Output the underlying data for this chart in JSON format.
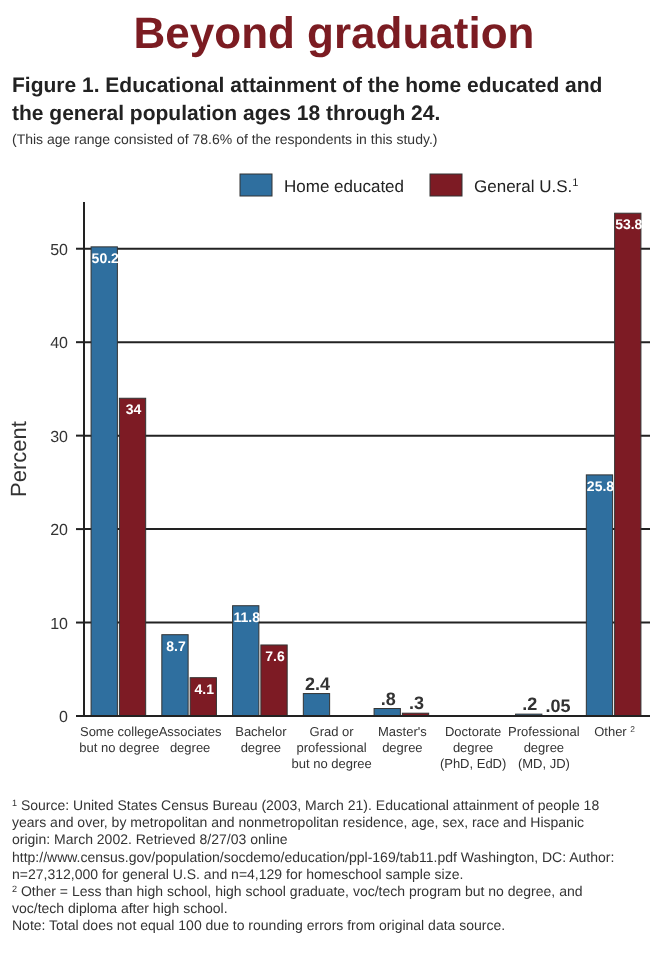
{
  "chart_data": {
    "type": "bar",
    "title": "Beyond graduation",
    "subtitle": "Figure 1. Educational attainment of the home educated and the general population ages 18 through 24.",
    "ylabel": "Percent",
    "categories": [
      "Some college\nbut no degree",
      "Associates\ndegree",
      "Bachelor\ndegree",
      "Grad or\nprofessional\nbut no degree",
      "Master's\ndegree",
      "Doctorate\ndegree\n(PhD, EdD)",
      "Professional\ndegree\n(MD, JD)",
      "Other $^{2}$"
    ],
    "series": [
      {
        "name": "Home educated",
        "color": "#2f6f9f",
        "values": [
          50.2,
          8.7,
          11.8,
          2.4,
          0.8,
          null,
          0.2,
          25.8
        ],
        "value_labels": [
          "50.2",
          "8.7",
          "11.8",
          "2.4",
          ".8",
          null,
          ".2",
          "25.8"
        ]
      },
      {
        "name": "General U.S.$^{1}$",
        "color": "#7d1b24",
        "values": [
          34,
          4.1,
          7.6,
          null,
          0.3,
          null,
          0.05,
          53.8
        ],
        "value_labels": [
          "34",
          "4.1",
          "7.6",
          null,
          ".3",
          null,
          ".05",
          "53.8"
        ]
      }
    ],
    "ylim": [
      0,
      55
    ],
    "yticks": [
      0,
      10,
      20,
      30,
      40,
      50
    ],
    "grid": "y",
    "legend": "top",
    "annotations": [
      "(This age range consisted of 78.6% of the respondents in this study.)",
      "$^{1}$ Source: United States Census Bureau (2003, March 21). Educational attainment of people 18 years and over, by metropolitan and nonmetropolitan residence, age, sex, race and Hispanic origin: March 2002. Retrieved 8/27/03 online http://www.census.gov/population/socdemo/education/ppl-169/tab11.pdf Washington, DC: Author: n=27,312,000 for general U.S. and n=4,129 for homeschool sample size.",
      "$^{2}$ Other = Less than high school, high school graduate, voc/tech program but no degree, and voc/tech diploma after high school.",
      "Note: Total does not equal 100 due to rounding errors from original data source."
    ]
  }
}
